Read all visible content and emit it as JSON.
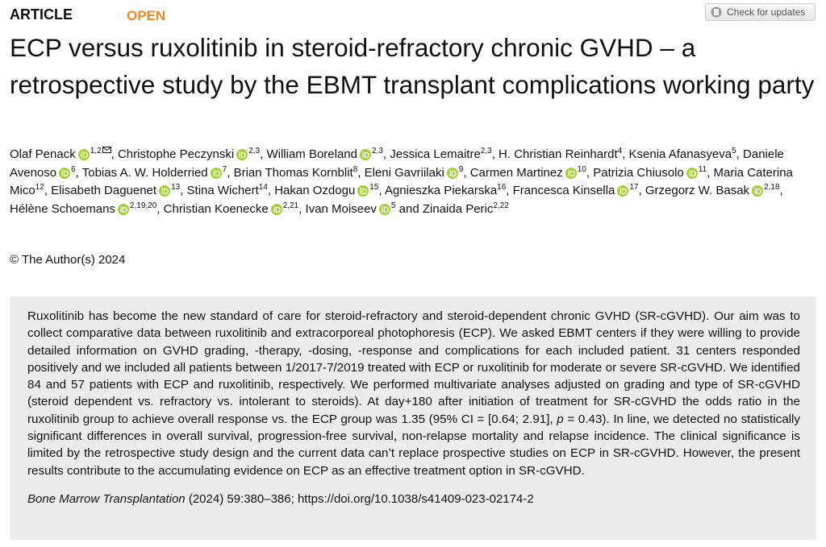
{
  "header": {
    "label": "ARTICLE",
    "access": "OPEN",
    "button": "Check for updates"
  },
  "title": "ECP versus ruxolitinib in steroid-refractory chronic GVHD – a retrospective study by the EBMT transplant complications working party",
  "authors": [
    {
      "name": "Olaf Penack",
      "orcid": true,
      "sup": "1,2",
      "corresponding": true,
      "sep": ", "
    },
    {
      "name": "Christophe Peczynski",
      "orcid": true,
      "sup": "2,3",
      "sep": ", "
    },
    {
      "name": "William Boreland",
      "orcid": true,
      "sup": "2,3",
      "sep": ", "
    },
    {
      "name": "Jessica Lemaitre",
      "orcid": false,
      "sup": "2,3",
      "sep": ", "
    },
    {
      "name": "H. Christian Reinhardt",
      "orcid": false,
      "sup": "4",
      "sep": ", "
    },
    {
      "name": "Ksenia Afanasyeva",
      "orcid": false,
      "sup": "5",
      "sep": ", "
    },
    {
      "name": "Daniele Avenoso",
      "orcid": true,
      "sup": "6",
      "sep": ", "
    },
    {
      "name": "Tobias A. W. Holderried",
      "orcid": true,
      "sup": "7",
      "sep": ", "
    },
    {
      "name": "Brian Thomas Kornblit",
      "orcid": false,
      "sup": "8",
      "sep": ", "
    },
    {
      "name": "Eleni Gavriilaki",
      "orcid": true,
      "sup": "9",
      "sep": ", "
    },
    {
      "name": "Carmen Martinez",
      "orcid": true,
      "sup": "10",
      "sep": ", "
    },
    {
      "name": "Patrizia Chiusolo",
      "orcid": true,
      "sup": "11",
      "sep": ", "
    },
    {
      "name": "Maria Caterina Mico",
      "orcid": false,
      "sup": "12",
      "sep": ", "
    },
    {
      "name": "Elisabeth Daguenet",
      "orcid": true,
      "sup": "13",
      "sep": ", "
    },
    {
      "name": "Stina Wichert",
      "orcid": false,
      "sup": "14",
      "sep": ", "
    },
    {
      "name": "Hakan Ozdogu",
      "orcid": true,
      "sup": "15",
      "sep": ", "
    },
    {
      "name": "Agnieszka Piekarska",
      "orcid": false,
      "sup": "16",
      "sep": ", "
    },
    {
      "name": "Francesca Kinsella",
      "orcid": true,
      "sup": "17",
      "sep": ", "
    },
    {
      "name": "Grzegorz W. Basak",
      "orcid": true,
      "sup": "2,18",
      "sep": ", "
    },
    {
      "name": "Hélène Schoemans",
      "orcid": true,
      "sup": "2,19,20",
      "sep": ", "
    },
    {
      "name": "Christian Koenecke",
      "orcid": true,
      "sup": "2,21",
      "sep": ", "
    },
    {
      "name": "Ivan Moiseev",
      "orcid": true,
      "sup": "5",
      "sep": " and "
    },
    {
      "name": "Zinaida Peric",
      "orcid": false,
      "sup": "2,22"
    }
  ],
  "copyright": "© The Author(s) 2024",
  "abstract": [
    {
      "text": "Ruxolitinib has become the new standard of care for steroid-refractory and steroid-dependent chronic GVHD (SR-cGVHD). Our aim was to collect comparative data between ruxolitinib and extracorporeal photophoresis (ECP). We asked EBMT centers if they were willing to provide detailed information on GVHD grading, -therapy, -dosing, -response and complications for each included patient. 31 centers responded positively and we included all patients between 1/2017-7/2019 treated with ECP or ruxolitinib for moderate or severe SR-cGVHD. We identified 84 and 57 patients with ECP and ruxolitinib, respectively. We performed multivariate analyses adjusted on grading and type of SR-cGVHD (steroid dependent vs. refractory vs. intolerant to steroids). At day+180 after initiation of treatment for SR-cGVHD the odds ratio in the ruxolitinib group to achieve overall response vs. the ECP group was 1.35 (95% CI = [0.64; 2.91], ",
      "italic": false
    },
    {
      "text": "p",
      "italic": true
    },
    {
      "text": " = 0.43). In line, we detected no statistically significant differences in overall survival, progression-free survival, non-relapse mortality and relapse incidence. The clinical significance is limited by the retrospective study design and the current data can’t replace prospective studies on ECP in SR-cGVHD. However, the present results contribute to the accumulating evidence on ECP as an effective treatment option in SR-cGVHD.",
      "italic": false
    }
  ],
  "citation": {
    "journal": "Bone Marrow Transplantation",
    "details": "(2024) 59:380–386; https://doi.org/10.1038/s41409-023-02174-2"
  }
}
